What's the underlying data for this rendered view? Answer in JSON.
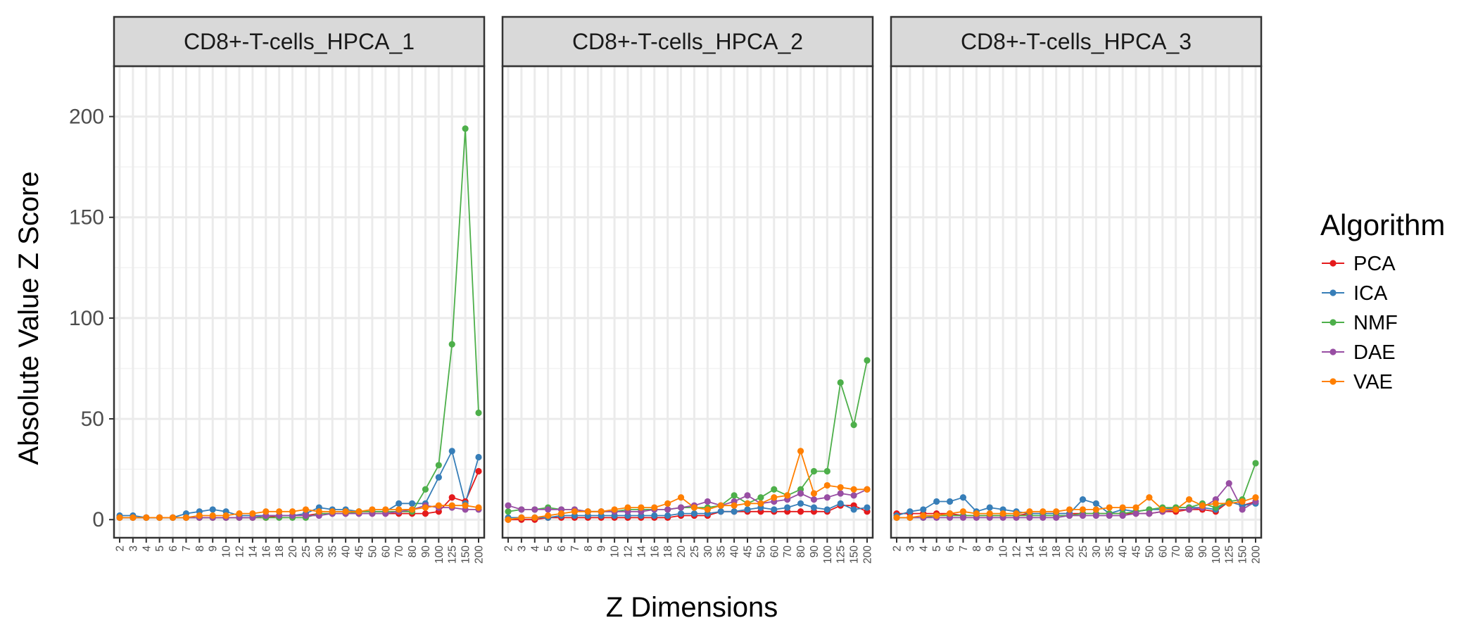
{
  "chart_data": {
    "type": "line",
    "xlabel": "Z Dimensions",
    "ylabel": "Absolute Value Z Score",
    "ylim": [
      -9,
      225
    ],
    "yticks": [
      0,
      50,
      100,
      150,
      200
    ],
    "ytick_labels": [
      "0",
      "50",
      "100",
      "150",
      "200"
    ],
    "grid": true,
    "x_categories": [
      "2",
      "3",
      "4",
      "5",
      "6",
      "7",
      "8",
      "9",
      "10",
      "12",
      "14",
      "16",
      "18",
      "20",
      "25",
      "30",
      "35",
      "40",
      "45",
      "50",
      "60",
      "70",
      "80",
      "90",
      "100",
      "125",
      "150",
      "200"
    ],
    "legend": {
      "title": "Algorithm",
      "position": "right",
      "entries": [
        {
          "name": "PCA",
          "color": "#e41a1c"
        },
        {
          "name": "ICA",
          "color": "#377eb8"
        },
        {
          "name": "NMF",
          "color": "#4daf4a"
        },
        {
          "name": "DAE",
          "color": "#984ea3"
        },
        {
          "name": "VAE",
          "color": "#ff7f00"
        }
      ]
    },
    "panels": [
      {
        "title": "CD8+-T-cells_HPCA_1",
        "series": [
          {
            "name": "PCA",
            "values": [
              1,
              1,
              1,
              1,
              1,
              1,
              1,
              1,
              1,
              1,
              1,
              1,
              2,
              2,
              2,
              3,
              3,
              3,
              3,
              3,
              3,
              3,
              3,
              3,
              4,
              11,
              9,
              24
            ]
          },
          {
            "name": "ICA",
            "values": [
              2,
              2,
              1,
              1,
              1,
              3,
              4,
              5,
              4,
              2,
              2,
              2,
              2,
              2,
              3,
              6,
              5,
              5,
              4,
              4,
              4,
              8,
              8,
              8,
              21,
              34,
              8,
              31
            ]
          },
          {
            "name": "NMF",
            "values": [
              1,
              1,
              1,
              1,
              1,
              1,
              1,
              1,
              1,
              1,
              1,
              1,
              1,
              1,
              1,
              3,
              3,
              3,
              4,
              4,
              4,
              4,
              4,
              15,
              27,
              87,
              194,
              53
            ]
          },
          {
            "name": "DAE",
            "values": [
              1,
              1,
              1,
              1,
              1,
              1,
              1,
              1,
              1,
              1,
              1,
              2,
              2,
              2,
              2,
              2,
              3,
              3,
              3,
              3,
              3,
              4,
              5,
              7,
              6,
              6,
              5,
              5
            ]
          },
          {
            "name": "VAE",
            "values": [
              1,
              1,
              1,
              1,
              1,
              1,
              2,
              2,
              2,
              3,
              3,
              4,
              4,
              4,
              5,
              4,
              4,
              4,
              4,
              5,
              5,
              5,
              5,
              6,
              7,
              7,
              7,
              6
            ]
          }
        ]
      },
      {
        "title": "CD8+-T-cells_HPCA_2",
        "series": [
          {
            "name": "PCA",
            "values": [
              0,
              0,
              0,
              1,
              1,
              1,
              1,
              1,
              1,
              1,
              1,
              1,
              1,
              2,
              2,
              2,
              4,
              4,
              4,
              4,
              4,
              4,
              4,
              4,
              4,
              7,
              7,
              4
            ]
          },
          {
            "name": "ICA",
            "values": [
              1,
              1,
              1,
              1,
              2,
              2,
              2,
              2,
              2,
              2,
              2,
              2,
              2,
              3,
              3,
              3,
              4,
              4,
              5,
              6,
              5,
              6,
              8,
              6,
              5,
              8,
              5,
              6
            ]
          },
          {
            "name": "NMF",
            "values": [
              4,
              5,
              5,
              6,
              5,
              5,
              4,
              4,
              4,
              5,
              5,
              5,
              5,
              6,
              6,
              6,
              7,
              12,
              8,
              11,
              15,
              12,
              15,
              24,
              24,
              68,
              47,
              79
            ]
          },
          {
            "name": "DAE",
            "values": [
              7,
              5,
              5,
              5,
              5,
              5,
              4,
              4,
              4,
              4,
              4,
              5,
              5,
              6,
              7,
              9,
              7,
              9,
              12,
              8,
              9,
              10,
              13,
              10,
              11,
              13,
              12,
              15
            ]
          },
          {
            "name": "VAE",
            "values": [
              0,
              1,
              1,
              2,
              3,
              4,
              4,
              4,
              5,
              6,
              6,
              6,
              8,
              11,
              6,
              5,
              7,
              7,
              8,
              8,
              11,
              12,
              34,
              13,
              17,
              16,
              15,
              15
            ]
          }
        ]
      },
      {
        "title": "CD8+-T-cells_HPCA_3",
        "series": [
          {
            "name": "PCA",
            "values": [
              3,
              3,
              3,
              3,
              3,
              2,
              2,
              2,
              2,
              2,
              3,
              3,
              3,
              3,
              3,
              3,
              3,
              3,
              3,
              3,
              4,
              4,
              5,
              5,
              4,
              9,
              7,
              9
            ]
          },
          {
            "name": "ICA",
            "values": [
              2,
              4,
              5,
              9,
              9,
              11,
              4,
              6,
              5,
              4,
              3,
              3,
              3,
              3,
              10,
              8,
              3,
              5,
              4,
              5,
              5,
              6,
              6,
              6,
              5,
              9,
              7,
              8
            ]
          },
          {
            "name": "NMF",
            "values": [
              1,
              1,
              1,
              2,
              2,
              2,
              2,
              2,
              2,
              2,
              2,
              2,
              2,
              2,
              3,
              3,
              3,
              3,
              4,
              5,
              6,
              6,
              6,
              8,
              6,
              9,
              10,
              28
            ]
          },
          {
            "name": "DAE",
            "values": [
              1,
              1,
              1,
              1,
              1,
              1,
              1,
              1,
              1,
              1,
              1,
              1,
              1,
              2,
              2,
              2,
              2,
              2,
              3,
              3,
              4,
              5,
              5,
              6,
              10,
              18,
              5,
              9
            ]
          },
          {
            "name": "VAE",
            "values": [
              1,
              1,
              2,
              2,
              3,
              4,
              3,
              3,
              3,
              3,
              4,
              4,
              4,
              5,
              5,
              5,
              6,
              6,
              6,
              11,
              5,
              5,
              10,
              7,
              8,
              8,
              9,
              11
            ]
          }
        ]
      }
    ]
  }
}
